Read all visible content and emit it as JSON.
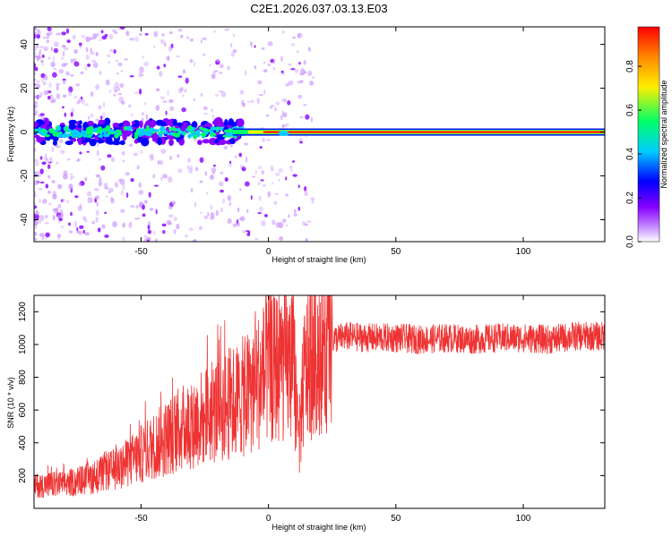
{
  "title": "C2E1.2026.037.03.13.E03",
  "colors": {
    "snr_line": "#ee3333",
    "frame": "#000000",
    "colormap": [
      "#ffffff",
      "#cc99ff",
      "#8800ff",
      "#0000ff",
      "#00ccff",
      "#00ff66",
      "#ffee00",
      "#ff8800",
      "#ff0000"
    ]
  },
  "chart_data": [
    {
      "type": "heatmap",
      "title": "",
      "xlabel": "Height of straight line (km)",
      "ylabel": "Frequency (Hz)",
      "xlim": [
        -92,
        132
      ],
      "ylim": [
        -50,
        48
      ],
      "x_ticks": [
        "-50",
        "0",
        "50",
        "100"
      ],
      "x_tick_values": [
        -50,
        0,
        50,
        100
      ],
      "y_ticks": [
        "40",
        "20",
        "0",
        "-20",
        "-40"
      ],
      "y_tick_values": [
        40,
        20,
        0,
        -20,
        -40
      ],
      "dominant_frequency_hz": 0,
      "colorbar": {
        "label": "Normalized spectral amplitude",
        "range": [
          0,
          0.98
        ],
        "ticks": [
          "0.0",
          "0.2",
          "0.4",
          "0.6",
          "0.8"
        ],
        "tick_values": [
          0,
          0.2,
          0.4,
          0.6,
          0.8
        ]
      }
    },
    {
      "type": "line",
      "title": "",
      "xlabel": "Height of straight line (km)",
      "ylabel": "SNR (10 * v/v)",
      "xlim": [
        -92,
        132
      ],
      "ylim": [
        0,
        1300
      ],
      "x_ticks": [
        "-50",
        "0",
        "50",
        "100"
      ],
      "x_tick_values": [
        -50,
        0,
        50,
        100
      ],
      "y_ticks": [
        "1200",
        "1000",
        "800",
        "600",
        "400",
        "200"
      ],
      "y_tick_values": [
        1200,
        1000,
        800,
        600,
        400,
        200
      ],
      "series": [
        {
          "x": [
            -92,
            -85,
            -80,
            -75,
            -70,
            -65,
            -60,
            -55,
            -50,
            -45,
            -40,
            -35,
            -30,
            -25,
            -20,
            -15,
            -12,
            -10,
            -8,
            -5,
            0,
            5,
            10,
            12,
            14,
            16,
            20,
            25,
            30,
            40,
            50,
            60,
            70,
            80,
            90,
            100,
            110,
            120,
            132
          ],
          "y": [
            140,
            145,
            150,
            165,
            185,
            210,
            240,
            280,
            330,
            380,
            430,
            480,
            520,
            560,
            600,
            640,
            660,
            680,
            700,
            760,
            840,
            880,
            860,
            400,
            800,
            900,
            980,
            1030,
            1050,
            1040,
            1040,
            1030,
            1040,
            1030,
            1040,
            1040,
            1030,
            1050,
            1050
          ]
        }
      ]
    }
  ]
}
